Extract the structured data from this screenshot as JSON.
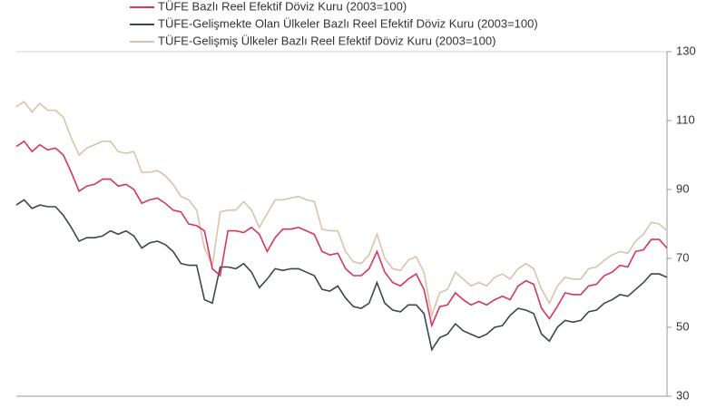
{
  "chart_data": {
    "type": "line",
    "series": [
      {
        "name": "TÜFE  Bazlı Reel Efektif Döviz Kuru (2003=100)",
        "color": "#d6365e",
        "values": [
          102.5,
          104,
          101,
          103,
          101.5,
          102,
          100,
          95,
          89.5,
          91,
          91.5,
          93,
          93,
          91,
          91.5,
          90,
          86,
          87,
          87.5,
          86,
          84,
          83.5,
          80,
          79.5,
          78,
          67,
          65,
          78,
          78,
          77.5,
          79,
          77,
          72,
          76,
          78.5,
          78.5,
          79,
          78,
          77,
          72,
          71,
          71.5,
          67,
          65,
          65,
          67,
          72,
          66,
          63,
          62,
          64,
          65.5,
          61,
          50.5,
          56,
          56.5,
          60,
          58,
          56.5,
          57.5,
          56.5,
          58,
          59,
          58,
          62,
          63.5,
          62.5,
          55.5,
          52.5,
          56,
          60,
          59.5,
          59.5,
          62,
          62.5,
          65,
          66,
          68,
          67.5,
          72,
          72.5,
          75.5,
          75.5,
          73
        ]
      },
      {
        "name": "TÜFE-Gelişmekte Olan Ülkeler Bazlı Reel Efektif Döviz Kuru (2003=100)",
        "color": "#3d4650",
        "values": [
          85.5,
          87,
          84.5,
          85.5,
          85,
          85,
          82.5,
          79,
          75,
          76,
          76,
          76.5,
          78,
          77,
          78,
          76.5,
          73,
          74.5,
          75,
          74,
          72,
          68.5,
          68,
          68,
          58,
          57,
          67.5,
          67.5,
          67,
          68.5,
          66,
          61.5,
          64,
          67,
          66.5,
          67,
          67,
          66,
          65,
          61,
          60.5,
          62,
          58.5,
          56,
          55.5,
          57,
          63,
          57,
          55,
          54.5,
          56.5,
          56.5,
          54,
          43.5,
          47,
          48,
          51,
          49,
          48,
          47,
          48,
          50,
          50.5,
          53.5,
          55.5,
          55,
          54,
          48,
          46,
          50,
          52,
          51.5,
          52,
          54.5,
          55,
          57,
          58,
          59.5,
          59,
          61,
          63,
          65.5,
          65.5,
          64.5
        ]
      },
      {
        "name": "TÜFE-Gelişmiş Ülkeler Bazlı Reel Efektif Döviz Kuru (2003=100)",
        "color": "#d9c3aa",
        "values": [
          114,
          115.5,
          112.5,
          115,
          113,
          113,
          111,
          105,
          100,
          102,
          103,
          104,
          104,
          101,
          100.5,
          101,
          95,
          95,
          95.5,
          94,
          91.5,
          88,
          87,
          84,
          73,
          68,
          83.5,
          84,
          84,
          86.5,
          84,
          79,
          83,
          87,
          87,
          87.5,
          88,
          87,
          86.5,
          78.5,
          78,
          78,
          72,
          69,
          68.5,
          71,
          77,
          70,
          67,
          66.5,
          69.5,
          70.5,
          66,
          53.5,
          60,
          61,
          66,
          64,
          62,
          63,
          62,
          64.5,
          65.5,
          64,
          67,
          68.5,
          67,
          61,
          57,
          62,
          64.5,
          64,
          64,
          67,
          67.5,
          69.5,
          71,
          72,
          71.5,
          75,
          77,
          80.5,
          80,
          78
        ]
      }
    ],
    "ylim": [
      30,
      130
    ],
    "yticks": [
      30,
      50,
      70,
      90,
      110,
      130
    ],
    "axis_side": "right",
    "grid": false
  }
}
